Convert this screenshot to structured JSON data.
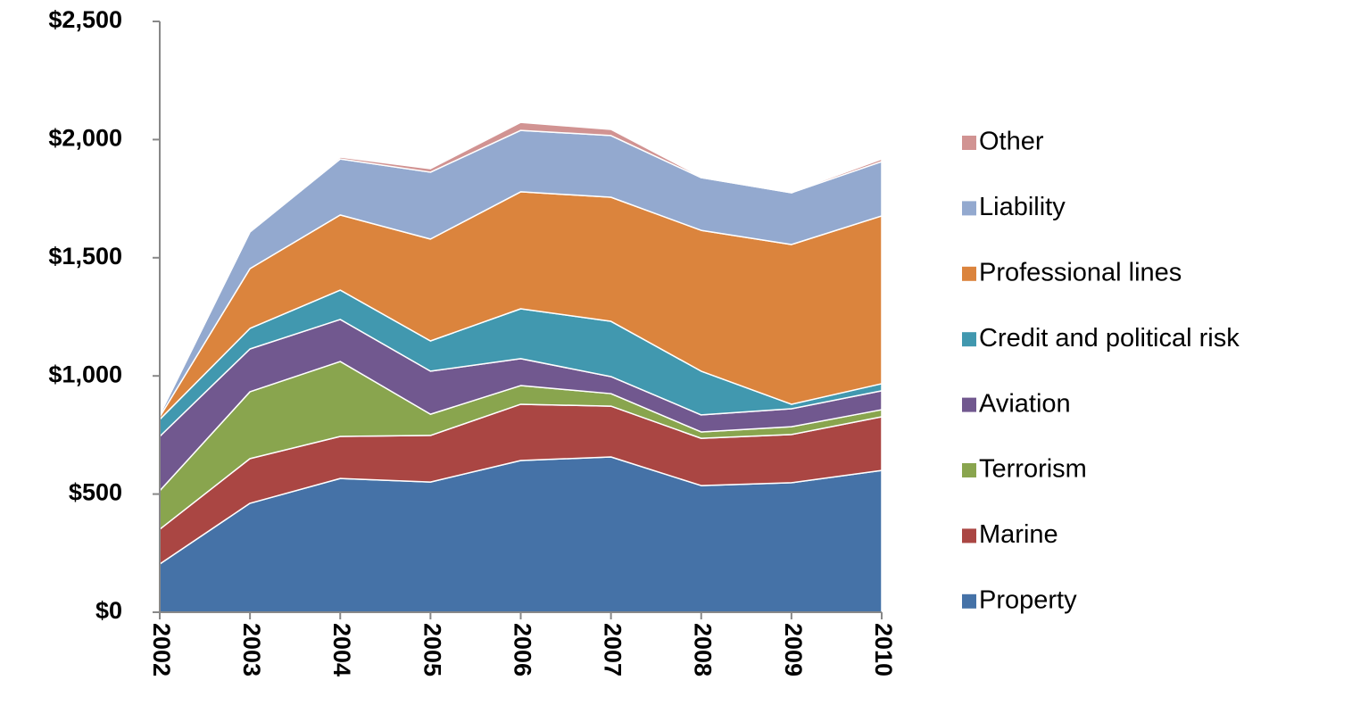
{
  "chart_data": {
    "type": "stacked_area",
    "categories": [
      "2002",
      "2003",
      "2004",
      "2005",
      "2006",
      "2007",
      "2008",
      "2009",
      "2010"
    ],
    "series": [
      {
        "name": "Property",
        "color": "#4572a7",
        "values": [
          204,
          461,
          566,
          551,
          642,
          657,
          536,
          548,
          600
        ]
      },
      {
        "name": "Marine",
        "color": "#aa4643",
        "values": [
          147,
          189,
          178,
          197,
          238,
          215,
          200,
          204,
          227
        ]
      },
      {
        "name": "Terrorism",
        "color": "#89a54e",
        "values": [
          163,
          283,
          317,
          90,
          79,
          53,
          27,
          33,
          30
        ]
      },
      {
        "name": "Aviation",
        "color": "#71588f",
        "values": [
          230,
          181,
          178,
          182,
          114,
          72,
          72,
          76,
          80
        ]
      },
      {
        "name": "Credit and political risk",
        "color": "#4198af",
        "values": [
          72,
          87,
          124,
          128,
          211,
          234,
          185,
          19,
          30
        ]
      },
      {
        "name": "Professional lines",
        "color": "#db843d",
        "values": [
          11,
          253,
          318,
          431,
          495,
          525,
          596,
          676,
          710
        ]
      },
      {
        "name": "Liability",
        "color": "#93a9cf",
        "values": [
          8,
          155,
          237,
          283,
          260,
          261,
          223,
          219,
          230
        ]
      },
      {
        "name": "Other",
        "color": "#d19392",
        "values": [
          0,
          3,
          8,
          15,
          34,
          26,
          4,
          4,
          11
        ]
      }
    ],
    "ylim": [
      0,
      2500
    ],
    "yticks": [
      {
        "value": 0,
        "label": "$0"
      },
      {
        "value": 500,
        "label": "$500"
      },
      {
        "value": 1000,
        "label": "$1,000"
      },
      {
        "value": 1500,
        "label": "$1,500"
      },
      {
        "value": 2000,
        "label": "$2,000"
      },
      {
        "value": 2500,
        "label": "$2,500"
      }
    ],
    "grid": false,
    "legend": "right"
  }
}
